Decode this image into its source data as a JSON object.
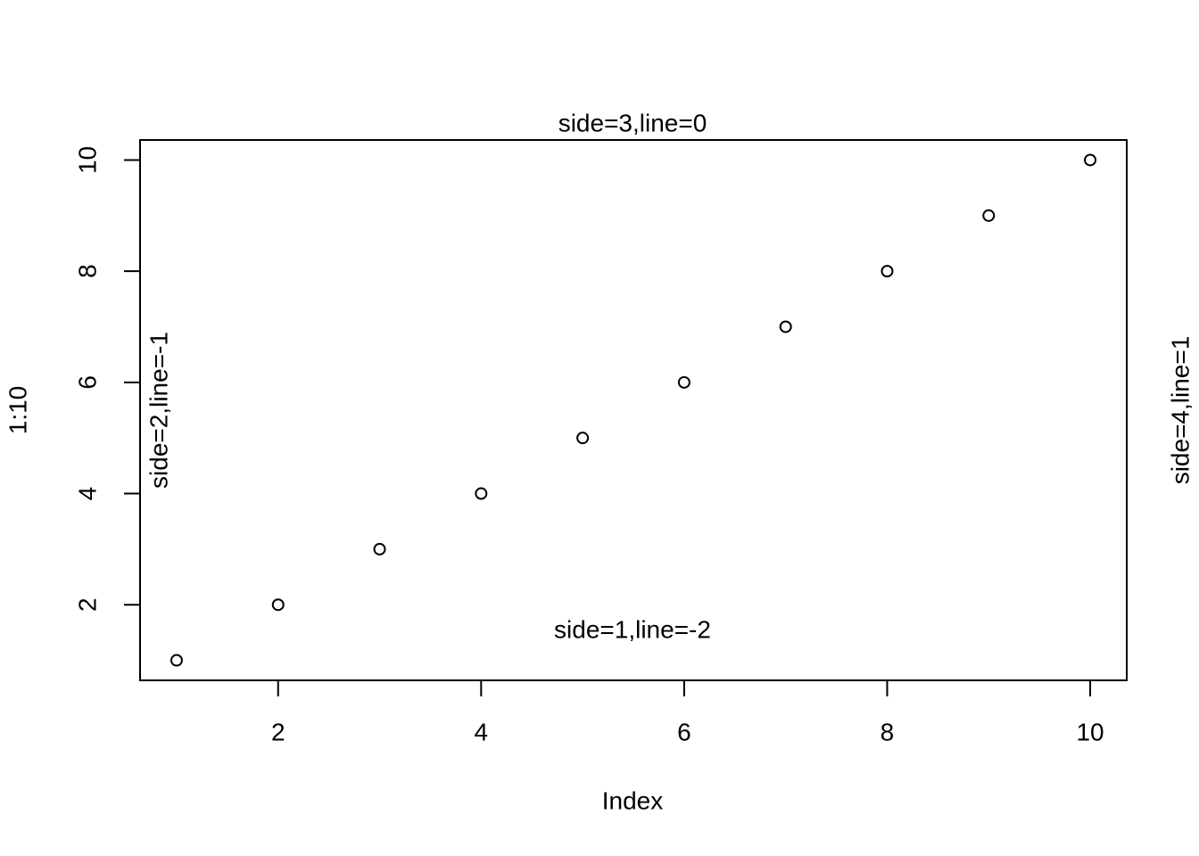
{
  "chart_data": {
    "type": "scatter",
    "x": [
      1,
      2,
      3,
      4,
      5,
      6,
      7,
      8,
      9,
      10
    ],
    "values": [
      1,
      2,
      3,
      4,
      5,
      6,
      7,
      8,
      9,
      10
    ],
    "xlabel": "Index",
    "ylabel": "1:10",
    "xlim": [
      0.64,
      10.36
    ],
    "ylim": [
      0.64,
      10.36
    ],
    "xticks": [
      2,
      4,
      6,
      8,
      10
    ],
    "yticks": [
      2,
      4,
      6,
      8,
      10
    ],
    "color": "#000000",
    "annotations": [
      "side=3,line=0",
      "side=1,line=-2",
      "side=2,line=-1",
      "side=4,line=1"
    ]
  }
}
